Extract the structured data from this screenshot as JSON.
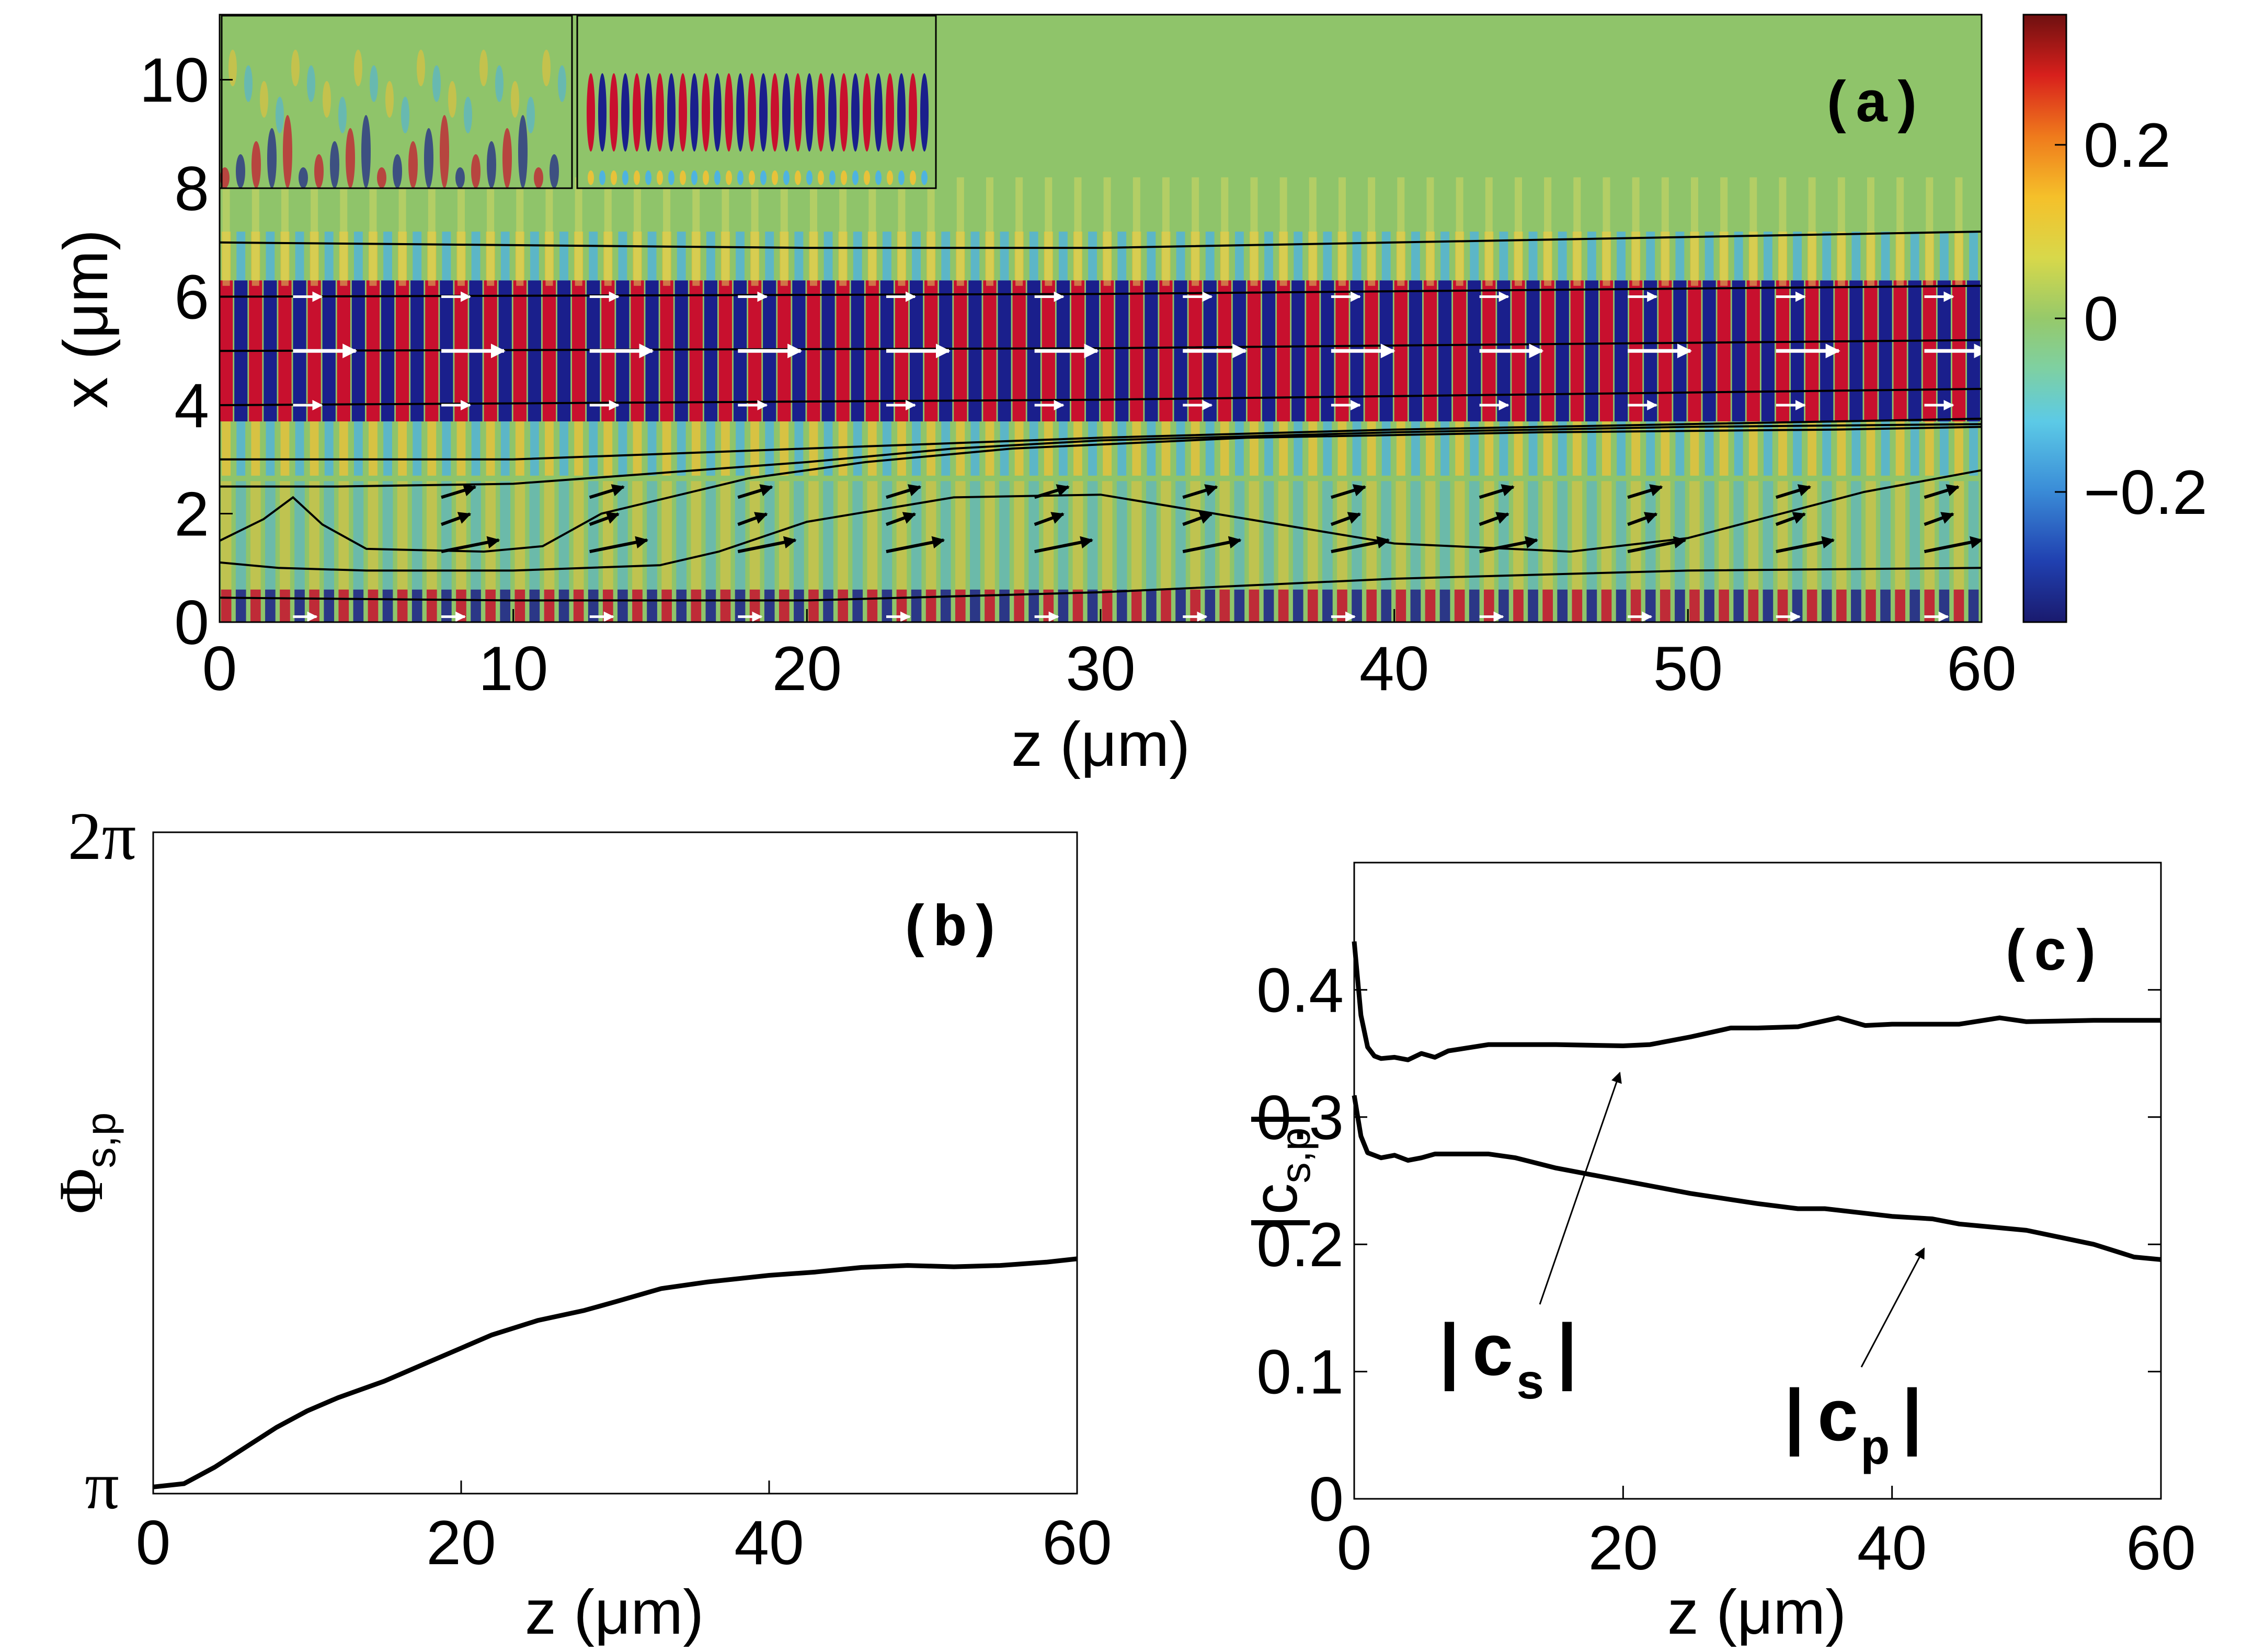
{
  "colors": {
    "field_positive": "#c8102e",
    "field_negative": "#1a1f8c",
    "field_zero": "#8fc46a",
    "curve": "#000000",
    "arrow_upper": "#ffffff",
    "arrow_lower": "#000000"
  },
  "chart_data": [
    {
      "id": "a",
      "type": "heatmap",
      "panel_label": "(a)",
      "xlabel": "z (μm)",
      "ylabel": "x (μm)",
      "xlim": [
        0,
        60
      ],
      "ylim": [
        0,
        11.2
      ],
      "xticks": [
        0,
        10,
        20,
        30,
        40,
        50,
        60
      ],
      "xtick_labels": [
        "0",
        "10",
        "20",
        "30",
        "40",
        "50",
        "60"
      ],
      "yticks": [
        0,
        2,
        4,
        6,
        8,
        10
      ],
      "ytick_labels": [
        "0",
        "2",
        "4",
        "6",
        "8",
        "10"
      ],
      "colorbar": {
        "range": [
          -0.35,
          0.35
        ],
        "ticks": [
          0.2,
          0,
          -0.2
        ],
        "tick_labels": [
          "0.2",
          "0",
          "−0.2"
        ]
      },
      "wave_period_um": 1.0,
      "guided_mode_center_x": 5.0,
      "field_lines": [
        {
          "z": [
            0,
            10,
            20,
            30,
            40,
            50,
            60
          ],
          "x": [
            7.0,
            6.95,
            6.9,
            6.9,
            7.0,
            7.1,
            7.2
          ]
        },
        {
          "z": [
            0,
            30,
            60
          ],
          "x": [
            6.0,
            6.05,
            6.2
          ]
        },
        {
          "z": [
            0,
            30,
            60
          ],
          "x": [
            5.0,
            5.05,
            5.2
          ]
        },
        {
          "z": [
            0,
            30,
            60
          ],
          "x": [
            4.0,
            4.1,
            4.3
          ]
        },
        {
          "z": [
            0,
            10,
            20,
            30,
            40,
            50,
            60
          ],
          "x": [
            3.0,
            3.0,
            3.2,
            3.4,
            3.55,
            3.65,
            3.75
          ]
        },
        {
          "z": [
            0,
            4,
            10,
            15,
            20,
            25,
            30,
            40,
            50,
            60
          ],
          "x": [
            2.5,
            2.5,
            2.55,
            2.75,
            2.95,
            3.2,
            3.35,
            3.5,
            3.6,
            3.65
          ]
        },
        {
          "z": [
            0,
            1.5,
            2.5,
            3.5,
            5,
            9,
            11,
            13,
            18,
            22,
            27,
            35,
            45,
            55,
            60
          ],
          "x": [
            1.5,
            1.9,
            2.3,
            1.8,
            1.35,
            1.3,
            1.4,
            2.0,
            2.65,
            2.95,
            3.2,
            3.4,
            3.5,
            3.55,
            3.6
          ]
        },
        {
          "z": [
            0,
            2,
            5,
            10,
            15,
            17,
            20,
            25,
            30,
            40,
            46,
            50,
            56,
            60
          ],
          "x": [
            1.1,
            1.0,
            0.95,
            0.95,
            1.05,
            1.3,
            1.85,
            2.3,
            2.35,
            1.45,
            1.3,
            1.55,
            2.4,
            2.8
          ]
        },
        {
          "z": [
            0,
            10,
            20,
            30,
            40,
            50,
            60
          ],
          "x": [
            0.45,
            0.4,
            0.4,
            0.55,
            0.8,
            0.95,
            1.0
          ]
        }
      ],
      "insets": [
        {
          "name": "inset-scattered-field",
          "description_hidden": true
        },
        {
          "name": "inset-guided-mode",
          "description_hidden": true
        }
      ]
    },
    {
      "id": "b",
      "type": "line",
      "panel_label": "(b)",
      "xlabel": "z (μm)",
      "ylabel": "Φ",
      "ylabel_sub": "s,p",
      "xlim": [
        0,
        60
      ],
      "ylim_fraction_of_pi": [
        1,
        2
      ],
      "xticks": [
        0,
        20,
        40,
        60
      ],
      "xtick_labels": [
        "0",
        "20",
        "40",
        "60"
      ],
      "ytick_labels": [
        "π",
        "2π"
      ],
      "series": [
        {
          "name": "Phi_sp",
          "x": [
            0,
            2,
            4,
            6,
            8,
            10,
            12,
            15,
            18,
            20,
            22,
            25,
            28,
            30,
            33,
            36,
            40,
            43,
            46,
            49,
            52,
            55,
            58,
            60
          ],
          "y_in_pi": [
            1.01,
            1.015,
            1.04,
            1.07,
            1.1,
            1.125,
            1.145,
            1.17,
            1.2,
            1.22,
            1.24,
            1.262,
            1.277,
            1.29,
            1.31,
            1.32,
            1.33,
            1.335,
            1.342,
            1.345,
            1.343,
            1.345,
            1.35,
            1.355
          ]
        }
      ]
    },
    {
      "id": "c",
      "type": "line",
      "panel_label": "(c)",
      "xlabel": "z (μm)",
      "ylabel": "|c",
      "ylabel_sub": "s,p",
      "ylabel_end": "|",
      "xlim": [
        0,
        60
      ],
      "ylim": [
        0,
        0.5
      ],
      "xticks": [
        0,
        20,
        40,
        60
      ],
      "xtick_labels": [
        "0",
        "20",
        "40",
        "60"
      ],
      "yticks": [
        0,
        0.1,
        0.2,
        0.3,
        0.4
      ],
      "ytick_labels": [
        "0",
        "0.1",
        "0.2",
        "0.3",
        "0.4"
      ],
      "series": [
        {
          "name": "|c_s|",
          "label": "|c",
          "label_sub": "s",
          "label_end": "|",
          "x": [
            0,
            0.5,
            1,
            1.5,
            2,
            3,
            4,
            5,
            6,
            7,
            10,
            15,
            20,
            22,
            25,
            28,
            30,
            33,
            36,
            38,
            40,
            45,
            48,
            50,
            55,
            60
          ],
          "y": [
            0.438,
            0.38,
            0.355,
            0.348,
            0.346,
            0.347,
            0.345,
            0.35,
            0.347,
            0.352,
            0.357,
            0.357,
            0.356,
            0.357,
            0.363,
            0.37,
            0.37,
            0.371,
            0.378,
            0.372,
            0.373,
            0.373,
            0.378,
            0.375,
            0.376,
            0.376
          ]
        },
        {
          "name": "|c_p|",
          "label": "|c",
          "label_sub": "p",
          "label_end": "|",
          "x": [
            0,
            0.5,
            1,
            2,
            3,
            4,
            5,
            6,
            7,
            10,
            12,
            15,
            20,
            25,
            30,
            33,
            35,
            40,
            43,
            45,
            50,
            55,
            58,
            60
          ],
          "y": [
            0.317,
            0.285,
            0.272,
            0.268,
            0.27,
            0.266,
            0.268,
            0.271,
            0.271,
            0.271,
            0.268,
            0.26,
            0.25,
            0.24,
            0.232,
            0.228,
            0.228,
            0.222,
            0.22,
            0.216,
            0.211,
            0.2,
            0.19,
            0.188
          ]
        }
      ]
    }
  ]
}
